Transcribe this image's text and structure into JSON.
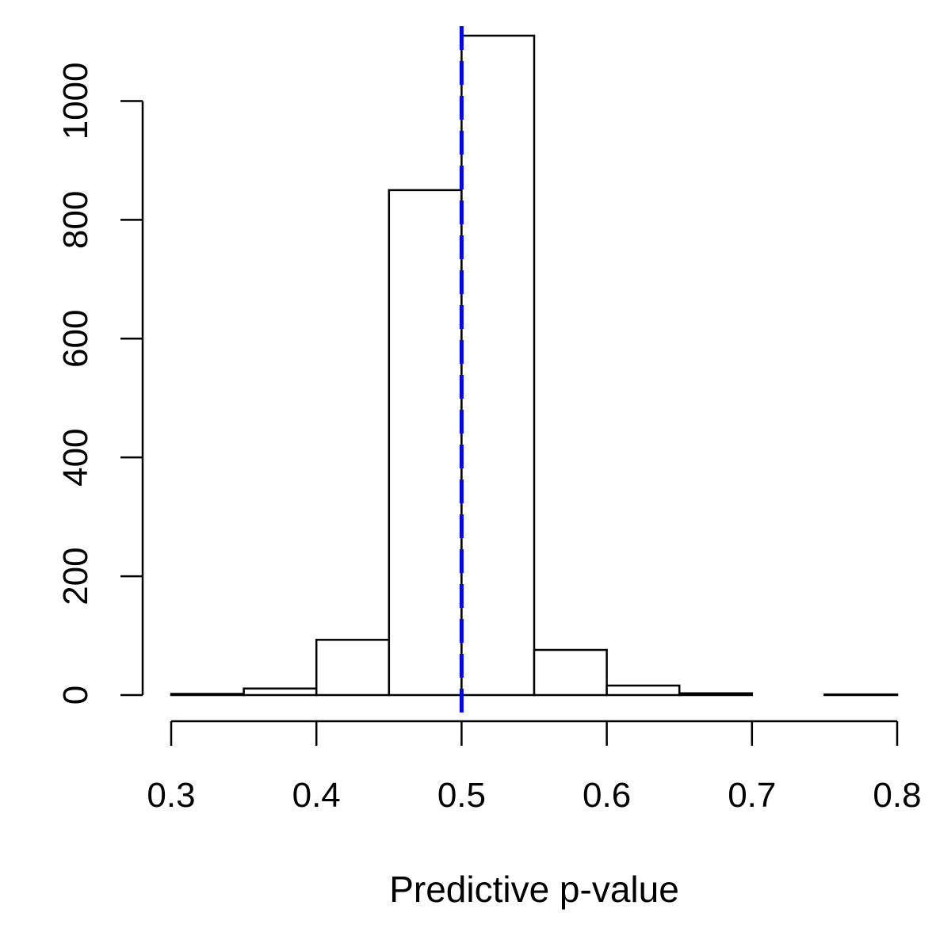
{
  "chart_data": {
    "type": "bar",
    "subtype": "histogram",
    "title": "",
    "xlabel": "Predictive p-value",
    "ylabel": "",
    "bins": [
      {
        "start": 0.3,
        "end": 0.35,
        "count": 2
      },
      {
        "start": 0.35,
        "end": 0.4,
        "count": 11
      },
      {
        "start": 0.4,
        "end": 0.45,
        "count": 93
      },
      {
        "start": 0.45,
        "end": 0.5,
        "count": 850
      },
      {
        "start": 0.5,
        "end": 0.55,
        "count": 1110
      },
      {
        "start": 0.55,
        "end": 0.6,
        "count": 76
      },
      {
        "start": 0.6,
        "end": 0.65,
        "count": 16
      },
      {
        "start": 0.65,
        "end": 0.7,
        "count": 3
      },
      {
        "start": 0.7,
        "end": 0.75,
        "count": 0
      },
      {
        "start": 0.75,
        "end": 0.8,
        "count": 1
      }
    ],
    "xlim": [
      0.3,
      0.8
    ],
    "ylim": [
      0,
      1110
    ],
    "x_ticks": [
      {
        "value": 0.3,
        "label": "0.3"
      },
      {
        "value": 0.4,
        "label": "0.4"
      },
      {
        "value": 0.5,
        "label": "0.5"
      },
      {
        "value": 0.6,
        "label": "0.6"
      },
      {
        "value": 0.7,
        "label": "0.7"
      },
      {
        "value": 0.8,
        "label": "0.8"
      }
    ],
    "y_ticks": [
      {
        "value": 0,
        "label": "0"
      },
      {
        "value": 200,
        "label": "200"
      },
      {
        "value": 400,
        "label": "400"
      },
      {
        "value": 600,
        "label": "600"
      },
      {
        "value": 800,
        "label": "800"
      },
      {
        "value": 1000,
        "label": "1000"
      }
    ],
    "reference_line": {
      "x": 0.5,
      "style": "dashed",
      "color": "#0000ff"
    },
    "bar_fill": "#ffffff",
    "bar_stroke": "#000000",
    "grid": false
  }
}
